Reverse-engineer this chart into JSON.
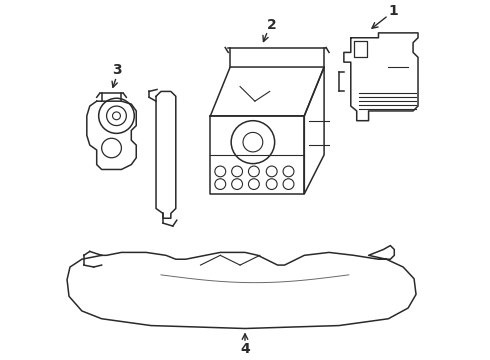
{
  "background_color": "#ffffff",
  "line_color": "#2a2a2a",
  "line_width": 1.1,
  "figsize": [
    4.9,
    3.6
  ],
  "dpi": 100
}
